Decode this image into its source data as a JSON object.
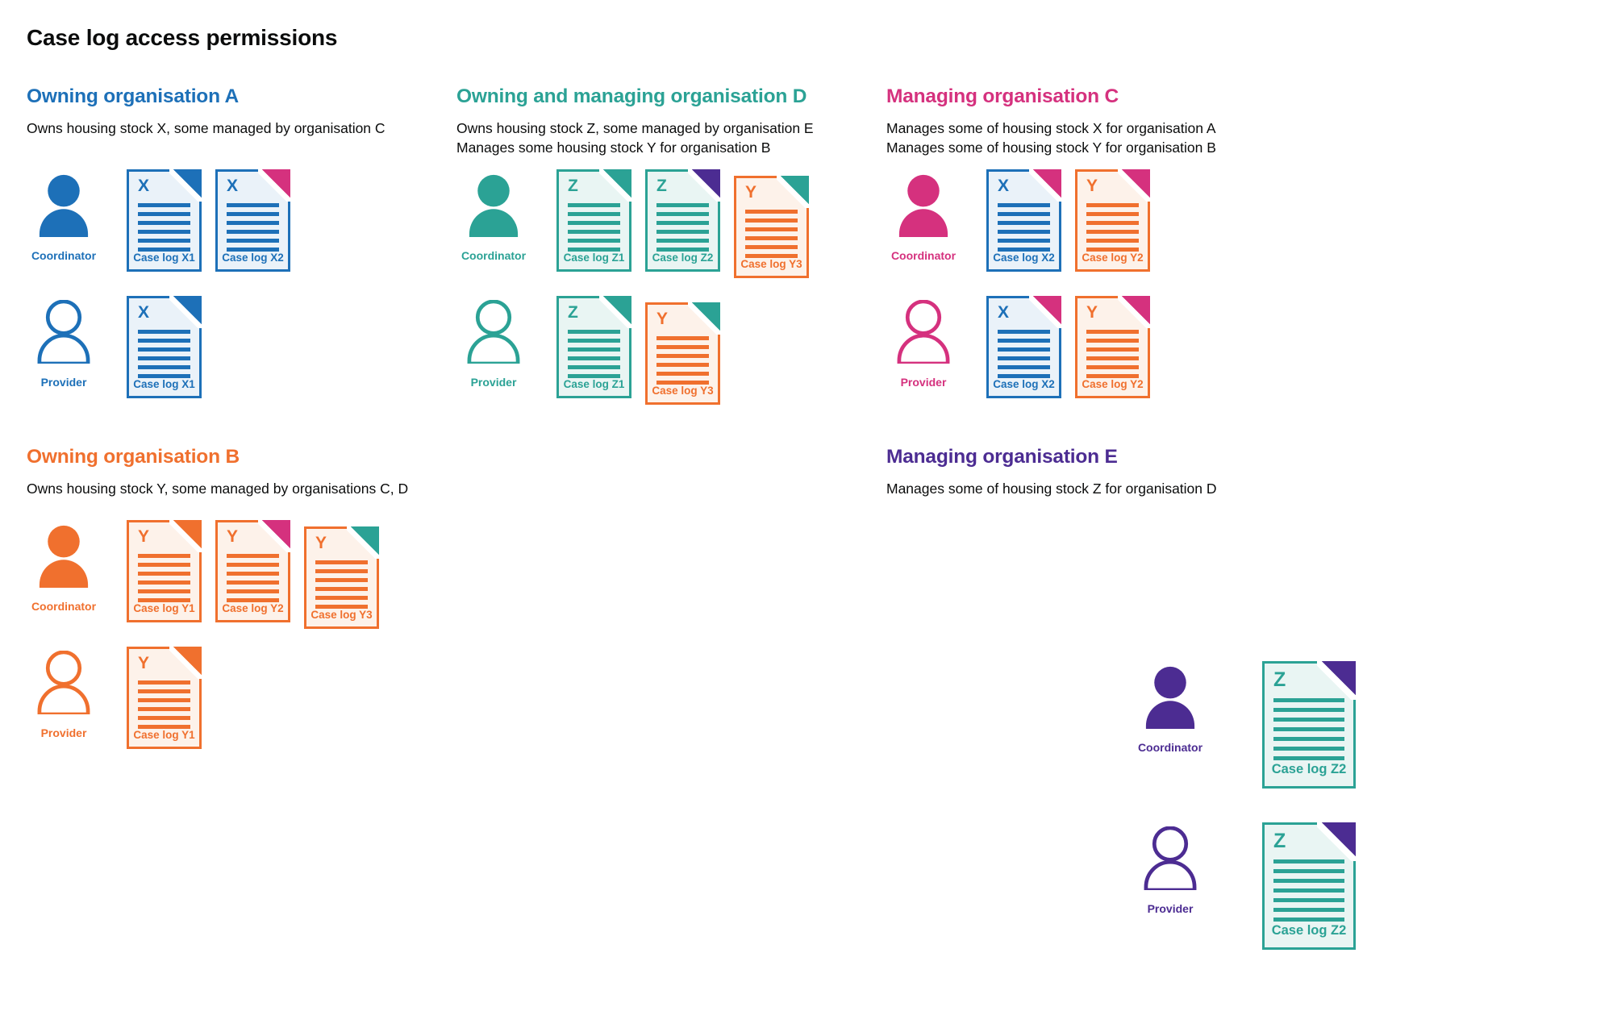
{
  "title": "Case log access permissions",
  "roles": {
    "coordinator": "Coordinator",
    "provider": "Provider"
  },
  "palette": {
    "blue": {
      "main": "#1d70b8",
      "bg": "#eaf2f9"
    },
    "teal": {
      "main": "#2ba295",
      "bg": "#e9f5f3"
    },
    "pink": {
      "main": "#d5317e",
      "bg": "#fbebf3"
    },
    "orange": {
      "main": "#f0702e",
      "bg": "#fdf2ea"
    },
    "purple": {
      "main": "#4c2c92",
      "bg": "#edeaf5"
    },
    "text": "#0b0c0c"
  },
  "sections": [
    {
      "id": "org-a",
      "color": "blue",
      "heading": "Owning organisation A",
      "description": [
        "Owns housing stock X, some managed by organisation C"
      ],
      "rows": [
        {
          "role": "coordinator",
          "icon": "person-filled",
          "docs": [
            {
              "letter": "X",
              "label": "Case log X1",
              "color": "blue",
              "fold": "blue",
              "lines": 6
            },
            {
              "letter": "X",
              "label": "Case log X2",
              "color": "blue",
              "fold": "pink",
              "lines": 6
            }
          ]
        },
        {
          "role": "provider",
          "icon": "person-outline",
          "docs": [
            {
              "letter": "X",
              "label": "Case log X1",
              "color": "blue",
              "fold": "blue",
              "lines": 6
            }
          ]
        }
      ]
    },
    {
      "id": "org-d",
      "color": "teal",
      "heading": "Owning and managing organisation D",
      "description": [
        "Owns housing stock Z, some managed by organisation E",
        "Manages some housing stock Y for organisation B"
      ],
      "rows": [
        {
          "role": "coordinator",
          "icon": "person-filled",
          "docs": [
            {
              "letter": "Z",
              "label": "Case log Z1",
              "color": "teal",
              "fold": "teal",
              "lines": 6
            },
            {
              "letter": "Z",
              "label": "Case log Z2",
              "color": "teal",
              "fold": "purple",
              "lines": 6
            },
            {
              "letter": "Y",
              "label": "Case log Y3",
              "color": "orange",
              "fold": "teal",
              "lines": 6,
              "nudge": true
            }
          ]
        },
        {
          "role": "provider",
          "icon": "person-outline",
          "docs": [
            {
              "letter": "Z",
              "label": "Case log Z1",
              "color": "teal",
              "fold": "teal",
              "lines": 6
            },
            {
              "letter": "Y",
              "label": "Case log Y3",
              "color": "orange",
              "fold": "teal",
              "lines": 6,
              "nudge": true
            }
          ]
        }
      ]
    },
    {
      "id": "org-c",
      "color": "pink",
      "heading": "Managing organisation C",
      "description": [
        "Manages some of housing stock X for organisation A",
        "Manages some of housing stock Y for organisation B"
      ],
      "rows": [
        {
          "role": "coordinator",
          "icon": "person-filled",
          "docs": [
            {
              "letter": "X",
              "label": "Case log X2",
              "color": "blue",
              "fold": "pink",
              "lines": 6
            },
            {
              "letter": "Y",
              "label": "Case log Y2",
              "color": "orange",
              "fold": "pink",
              "lines": 6
            }
          ]
        },
        {
          "role": "provider",
          "icon": "person-outline",
          "docs": [
            {
              "letter": "X",
              "label": "Case log X2",
              "color": "blue",
              "fold": "pink",
              "lines": 6
            },
            {
              "letter": "Y",
              "label": "Case log Y2",
              "color": "orange",
              "fold": "pink",
              "lines": 6
            }
          ]
        }
      ]
    },
    {
      "id": "org-b",
      "color": "orange",
      "heading": "Owning organisation B",
      "description": [
        "Owns housing stock Y, some managed by organisations C, D"
      ],
      "rows": [
        {
          "role": "coordinator",
          "icon": "person-filled",
          "docs": [
            {
              "letter": "Y",
              "label": "Case log Y1",
              "color": "orange",
              "fold": "orange",
              "lines": 6
            },
            {
              "letter": "Y",
              "label": "Case log Y2",
              "color": "orange",
              "fold": "pink",
              "lines": 6
            },
            {
              "letter": "Y",
              "label": "Case log Y3",
              "color": "orange",
              "fold": "teal",
              "lines": 6,
              "nudge": true
            }
          ]
        },
        {
          "role": "provider",
          "icon": "person-outline",
          "docs": [
            {
              "letter": "Y",
              "label": "Case log Y1",
              "color": "orange",
              "fold": "orange",
              "lines": 6
            }
          ]
        }
      ]
    },
    {
      "id": "org-e",
      "color": "purple",
      "heading": "Managing organisation E",
      "description": [
        "Manages some of housing stock Z for organisation D"
      ],
      "rows": [
        {
          "role": "coordinator",
          "icon": "person-filled",
          "docs": [
            {
              "letter": "Z",
              "label": "Case log Z2",
              "color": "teal",
              "fold": "purple",
              "lines": 7
            }
          ]
        },
        {
          "role": "provider",
          "icon": "person-outline",
          "docs": [
            {
              "letter": "Z",
              "label": "Case log Z2",
              "color": "teal",
              "fold": "purple",
              "lines": 7
            }
          ]
        }
      ]
    }
  ]
}
